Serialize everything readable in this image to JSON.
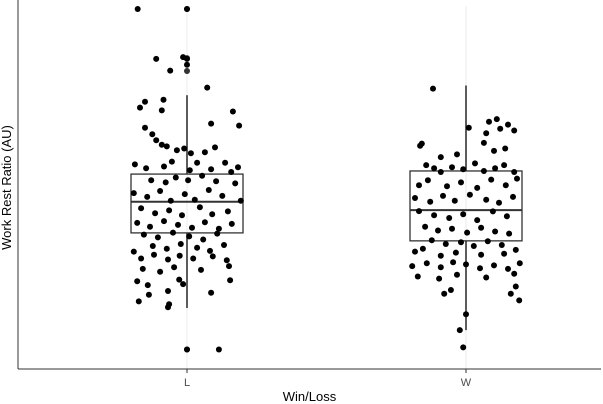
{
  "chart_data": {
    "type": "boxplot",
    "title": "",
    "xlabel": "Win/Loss",
    "ylabel": "Work Rest Ratio (AU)",
    "categories": [
      "L",
      "W"
    ],
    "y_tick_labels": [],
    "ylim": [
      0,
      100
    ],
    "grid": {
      "vertical_major": true,
      "horizontal": false
    },
    "boxes": [
      {
        "category": "L",
        "whisker_low": 13.3,
        "q1": 35.0,
        "median": 44.0,
        "q3": 52.0,
        "whisker_high": 74.8,
        "outliers": [
          1.3,
          81.8,
          85.5,
          99.7
        ]
      },
      {
        "category": "W",
        "whisker_low": 6.9,
        "q1": 32.7,
        "median": 41.6,
        "q3": 52.9,
        "whisker_high": 77.6,
        "outliers": []
      }
    ],
    "points": [
      {
        "category": "L",
        "jitter": -0.88,
        "y": 99.7
      },
      {
        "category": "L",
        "jitter": 0.0,
        "y": 99.7
      },
      {
        "category": "L",
        "jitter": -0.55,
        "y": 85.3
      },
      {
        "category": "L",
        "jitter": -0.07,
        "y": 85.8
      },
      {
        "category": "L",
        "jitter": 0.0,
        "y": 85.3
      },
      {
        "category": "L",
        "jitter": 0.0,
        "y": 83.6
      },
      {
        "category": "L",
        "jitter": -0.3,
        "y": 81.9
      },
      {
        "category": "L",
        "jitter": 0.36,
        "y": 77.0
      },
      {
        "category": "L",
        "jitter": -0.75,
        "y": 72.9
      },
      {
        "category": "L",
        "jitter": -0.42,
        "y": 73.5
      },
      {
        "category": "L",
        "jitter": -0.45,
        "y": 70.4
      },
      {
        "category": "L",
        "jitter": -0.84,
        "y": 71.2
      },
      {
        "category": "L",
        "jitter": 0.82,
        "y": 70.1
      },
      {
        "category": "L",
        "jitter": -0.75,
        "y": 65.4
      },
      {
        "category": "L",
        "jitter": -0.62,
        "y": 63.5
      },
      {
        "category": "L",
        "jitter": 0.43,
        "y": 66.6
      },
      {
        "category": "L",
        "jitter": 0.93,
        "y": 66.0
      },
      {
        "category": "L",
        "jitter": -0.55,
        "y": 61.8
      },
      {
        "category": "L",
        "jitter": -0.45,
        "y": 60.5
      },
      {
        "category": "L",
        "jitter": -0.36,
        "y": 60.0
      },
      {
        "category": "L",
        "jitter": -0.18,
        "y": 58.9
      },
      {
        "category": "L",
        "jitter": -0.05,
        "y": 59.4
      },
      {
        "category": "L",
        "jitter": 0.07,
        "y": 58.0
      },
      {
        "category": "L",
        "jitter": 0.32,
        "y": 58.3
      },
      {
        "category": "L",
        "jitter": 0.5,
        "y": 59.7
      },
      {
        "category": "L",
        "jitter": -0.93,
        "y": 54.8
      },
      {
        "category": "L",
        "jitter": -0.73,
        "y": 53.7
      },
      {
        "category": "L",
        "jitter": -0.41,
        "y": 54.2
      },
      {
        "category": "L",
        "jitter": -0.27,
        "y": 55.6
      },
      {
        "category": "L",
        "jitter": 0.05,
        "y": 53.1
      },
      {
        "category": "L",
        "jitter": 0.18,
        "y": 55.3
      },
      {
        "category": "L",
        "jitter": 0.43,
        "y": 53.4
      },
      {
        "category": "L",
        "jitter": 0.68,
        "y": 55.3
      },
      {
        "category": "L",
        "jitter": 0.79,
        "y": 52.6
      },
      {
        "category": "L",
        "jitter": 0.91,
        "y": 54.0
      },
      {
        "category": "L",
        "jitter": -0.64,
        "y": 50.2
      },
      {
        "category": "L",
        "jitter": -0.38,
        "y": 49.6
      },
      {
        "category": "L",
        "jitter": -0.2,
        "y": 51.0
      },
      {
        "category": "L",
        "jitter": 0.02,
        "y": 50.2
      },
      {
        "category": "L",
        "jitter": 0.27,
        "y": 51.5
      },
      {
        "category": "L",
        "jitter": 0.52,
        "y": 49.9
      },
      {
        "category": "L",
        "jitter": 0.86,
        "y": 49.3
      },
      {
        "category": "L",
        "jitter": -0.95,
        "y": 46.5
      },
      {
        "category": "L",
        "jitter": -0.71,
        "y": 45.4
      },
      {
        "category": "L",
        "jitter": -0.48,
        "y": 47.1
      },
      {
        "category": "L",
        "jitter": -0.29,
        "y": 44.3
      },
      {
        "category": "L",
        "jitter": -0.04,
        "y": 46.2
      },
      {
        "category": "L",
        "jitter": 0.14,
        "y": 44.6
      },
      {
        "category": "L",
        "jitter": 0.39,
        "y": 47.4
      },
      {
        "category": "L",
        "jitter": 0.63,
        "y": 45.7
      },
      {
        "category": "L",
        "jitter": 0.96,
        "y": 44.3
      },
      {
        "category": "L",
        "jitter": -0.82,
        "y": 42.1
      },
      {
        "category": "L",
        "jitter": -0.57,
        "y": 40.7
      },
      {
        "category": "L",
        "jitter": -0.32,
        "y": 41.5
      },
      {
        "category": "L",
        "jitter": -0.09,
        "y": 40.1
      },
      {
        "category": "L",
        "jitter": 0.23,
        "y": 42.4
      },
      {
        "category": "L",
        "jitter": 0.45,
        "y": 40.4
      },
      {
        "category": "L",
        "jitter": 0.73,
        "y": 41.2
      },
      {
        "category": "L",
        "jitter": -0.89,
        "y": 37.9
      },
      {
        "category": "L",
        "jitter": -0.66,
        "y": 36.8
      },
      {
        "category": "L",
        "jitter": -0.41,
        "y": 38.4
      },
      {
        "category": "L",
        "jitter": -0.16,
        "y": 37.3
      },
      {
        "category": "L",
        "jitter": 0.09,
        "y": 36.5
      },
      {
        "category": "L",
        "jitter": 0.32,
        "y": 38.1
      },
      {
        "category": "L",
        "jitter": 0.57,
        "y": 36.2
      },
      {
        "category": "L",
        "jitter": 0.8,
        "y": 37.6
      },
      {
        "category": "L",
        "jitter": -0.77,
        "y": 34.5
      },
      {
        "category": "L",
        "jitter": -0.52,
        "y": 33.7
      },
      {
        "category": "L",
        "jitter": -0.25,
        "y": 35.1
      },
      {
        "category": "L",
        "jitter": 0.04,
        "y": 34.0
      },
      {
        "category": "L",
        "jitter": 0.29,
        "y": 33.1
      },
      {
        "category": "L",
        "jitter": 0.54,
        "y": 34.8
      },
      {
        "category": "L",
        "jitter": -0.61,
        "y": 31.2
      },
      {
        "category": "L",
        "jitter": -0.36,
        "y": 30.4
      },
      {
        "category": "L",
        "jitter": -0.11,
        "y": 31.8
      },
      {
        "category": "L",
        "jitter": 0.18,
        "y": 30.7
      },
      {
        "category": "L",
        "jitter": 0.41,
        "y": 29.8
      },
      {
        "category": "L",
        "jitter": 0.66,
        "y": 31.5
      },
      {
        "category": "L",
        "jitter": -0.95,
        "y": 29.6
      },
      {
        "category": "L",
        "jitter": -0.82,
        "y": 27.6
      },
      {
        "category": "L",
        "jitter": -0.59,
        "y": 28.7
      },
      {
        "category": "L",
        "jitter": -0.34,
        "y": 27.3
      },
      {
        "category": "L",
        "jitter": -0.13,
        "y": 28.4
      },
      {
        "category": "L",
        "jitter": 0.11,
        "y": 27.6
      },
      {
        "category": "L",
        "jitter": 0.46,
        "y": 28.2
      },
      {
        "category": "L",
        "jitter": 0.71,
        "y": 27.1
      },
      {
        "category": "L",
        "jitter": -0.79,
        "y": 24.6
      },
      {
        "category": "L",
        "jitter": -0.48,
        "y": 23.8
      },
      {
        "category": "L",
        "jitter": -0.23,
        "y": 25.1
      },
      {
        "category": "L",
        "jitter": 0.25,
        "y": 24.3
      },
      {
        "category": "L",
        "jitter": 0.75,
        "y": 25.4
      },
      {
        "category": "L",
        "jitter": -0.89,
        "y": 21.0
      },
      {
        "category": "L",
        "jitter": -0.14,
        "y": 21.5
      },
      {
        "category": "L",
        "jitter": -0.7,
        "y": 19.9
      },
      {
        "category": "L",
        "jitter": -0.07,
        "y": 20.2
      },
      {
        "category": "L",
        "jitter": 0.77,
        "y": 21.3
      },
      {
        "category": "L",
        "jitter": -0.68,
        "y": 17.1
      },
      {
        "category": "L",
        "jitter": -0.34,
        "y": 18.2
      },
      {
        "category": "L",
        "jitter": 0.43,
        "y": 17.7
      },
      {
        "category": "L",
        "jitter": -0.86,
        "y": 15.2
      },
      {
        "category": "L",
        "jitter": -0.32,
        "y": 14.4
      },
      {
        "category": "L",
        "jitter": -0.34,
        "y": 13.5
      },
      {
        "category": "L",
        "jitter": 0.0,
        "y": 1.3
      },
      {
        "category": "L",
        "jitter": 0.57,
        "y": 1.3
      },
      {
        "category": "W",
        "jitter": -0.59,
        "y": 76.7
      },
      {
        "category": "W",
        "jitter": 0.41,
        "y": 67.1
      },
      {
        "category": "W",
        "jitter": 0.55,
        "y": 67.9
      },
      {
        "category": "W",
        "jitter": 0.05,
        "y": 65.4
      },
      {
        "category": "W",
        "jitter": 0.36,
        "y": 63.8
      },
      {
        "category": "W",
        "jitter": 0.61,
        "y": 65.1
      },
      {
        "category": "W",
        "jitter": 0.75,
        "y": 66.3
      },
      {
        "category": "W",
        "jitter": 0.86,
        "y": 64.6
      },
      {
        "category": "W",
        "jitter": -0.82,
        "y": 60.2
      },
      {
        "category": "W",
        "jitter": -0.79,
        "y": 60.8
      },
      {
        "category": "W",
        "jitter": 0.32,
        "y": 61.0
      },
      {
        "category": "W",
        "jitter": 0.5,
        "y": 58.7
      },
      {
        "category": "W",
        "jitter": 0.7,
        "y": 59.4
      },
      {
        "category": "W",
        "jitter": -0.45,
        "y": 56.9
      },
      {
        "category": "W",
        "jitter": -0.16,
        "y": 57.7
      },
      {
        "category": "W",
        "jitter": -0.71,
        "y": 54.6
      },
      {
        "category": "W",
        "jitter": -0.57,
        "y": 53.7
      },
      {
        "category": "W",
        "jitter": -0.45,
        "y": 52.6
      },
      {
        "category": "W",
        "jitter": -0.25,
        "y": 54.0
      },
      {
        "category": "W",
        "jitter": -0.05,
        "y": 53.4
      },
      {
        "category": "W",
        "jitter": 0.16,
        "y": 55.1
      },
      {
        "category": "W",
        "jitter": 0.32,
        "y": 52.9
      },
      {
        "category": "W",
        "jitter": 0.52,
        "y": 53.7
      },
      {
        "category": "W",
        "jitter": 0.68,
        "y": 54.6
      },
      {
        "category": "W",
        "jitter": 0.86,
        "y": 52.6
      },
      {
        "category": "W",
        "jitter": -0.84,
        "y": 48.8
      },
      {
        "category": "W",
        "jitter": -0.68,
        "y": 50.2
      },
      {
        "category": "W",
        "jitter": -0.34,
        "y": 48.5
      },
      {
        "category": "W",
        "jitter": -0.09,
        "y": 49.6
      },
      {
        "category": "W",
        "jitter": 0.2,
        "y": 48.0
      },
      {
        "category": "W",
        "jitter": 0.45,
        "y": 50.4
      },
      {
        "category": "W",
        "jitter": 0.71,
        "y": 48.8
      },
      {
        "category": "W",
        "jitter": 0.91,
        "y": 50.7
      },
      {
        "category": "W",
        "jitter": -0.91,
        "y": 45.1
      },
      {
        "category": "W",
        "jitter": -0.64,
        "y": 44.0
      },
      {
        "category": "W",
        "jitter": -0.41,
        "y": 45.7
      },
      {
        "category": "W",
        "jitter": -0.2,
        "y": 44.3
      },
      {
        "category": "W",
        "jitter": 0.07,
        "y": 46.0
      },
      {
        "category": "W",
        "jitter": 0.36,
        "y": 44.6
      },
      {
        "category": "W",
        "jitter": 0.59,
        "y": 43.7
      },
      {
        "category": "W",
        "jitter": 0.84,
        "y": 45.4
      },
      {
        "category": "W",
        "jitter": -0.84,
        "y": 41.3
      },
      {
        "category": "W",
        "jitter": -0.57,
        "y": 40.1
      },
      {
        "category": "W",
        "jitter": -0.3,
        "y": 39.3
      },
      {
        "category": "W",
        "jitter": -0.05,
        "y": 40.4
      },
      {
        "category": "W",
        "jitter": 0.2,
        "y": 38.7
      },
      {
        "category": "W",
        "jitter": 0.48,
        "y": 41.2
      },
      {
        "category": "W",
        "jitter": 0.73,
        "y": 39.8
      },
      {
        "category": "W",
        "jitter": -0.73,
        "y": 36.8
      },
      {
        "category": "W",
        "jitter": -0.5,
        "y": 35.7
      },
      {
        "category": "W",
        "jitter": -0.25,
        "y": 36.2
      },
      {
        "category": "W",
        "jitter": 0.02,
        "y": 35.1
      },
      {
        "category": "W",
        "jitter": 0.27,
        "y": 36.5
      },
      {
        "category": "W",
        "jitter": 0.52,
        "y": 35.4
      },
      {
        "category": "W",
        "jitter": 0.77,
        "y": 34.8
      },
      {
        "category": "W",
        "jitter": -0.61,
        "y": 32.9
      },
      {
        "category": "W",
        "jitter": -0.36,
        "y": 31.8
      },
      {
        "category": "W",
        "jitter": -0.09,
        "y": 32.3
      },
      {
        "category": "W",
        "jitter": 0.14,
        "y": 31.2
      },
      {
        "category": "W",
        "jitter": 0.39,
        "y": 32.6
      },
      {
        "category": "W",
        "jitter": 0.64,
        "y": 31.5
      },
      {
        "category": "W",
        "jitter": -0.91,
        "y": 29.6
      },
      {
        "category": "W",
        "jitter": -0.77,
        "y": 30.4
      },
      {
        "category": "W",
        "jitter": 0.89,
        "y": 30.1
      },
      {
        "category": "W",
        "jitter": -0.45,
        "y": 28.4
      },
      {
        "category": "W",
        "jitter": -0.18,
        "y": 29.3
      },
      {
        "category": "W",
        "jitter": 0.27,
        "y": 28.7
      },
      {
        "category": "W",
        "jitter": 0.68,
        "y": 29.0
      },
      {
        "category": "W",
        "jitter": -0.96,
        "y": 25.4
      },
      {
        "category": "W",
        "jitter": -0.7,
        "y": 26.2
      },
      {
        "category": "W",
        "jitter": -0.45,
        "y": 25.1
      },
      {
        "category": "W",
        "jitter": -0.23,
        "y": 26.5
      },
      {
        "category": "W",
        "jitter": 0.0,
        "y": 25.9
      },
      {
        "category": "W",
        "jitter": 0.25,
        "y": 24.8
      },
      {
        "category": "W",
        "jitter": 0.5,
        "y": 25.6
      },
      {
        "category": "W",
        "jitter": 0.75,
        "y": 24.6
      },
      {
        "category": "W",
        "jitter": 0.96,
        "y": 26.2
      },
      {
        "category": "W",
        "jitter": -0.86,
        "y": 22.4
      },
      {
        "category": "W",
        "jitter": -0.48,
        "y": 21.8
      },
      {
        "category": "W",
        "jitter": -0.16,
        "y": 22.9
      },
      {
        "category": "W",
        "jitter": 0.36,
        "y": 22.1
      },
      {
        "category": "W",
        "jitter": 0.86,
        "y": 23.2
      },
      {
        "category": "W",
        "jitter": 0.89,
        "y": 19.5
      },
      {
        "category": "W",
        "jitter": -0.39,
        "y": 17.4
      },
      {
        "category": "W",
        "jitter": -0.27,
        "y": 18.5
      },
      {
        "category": "W",
        "jitter": 0.8,
        "y": 17.4
      },
      {
        "category": "W",
        "jitter": 0.95,
        "y": 15.5
      },
      {
        "category": "W",
        "jitter": 0.0,
        "y": 11.5
      },
      {
        "category": "W",
        "jitter": -0.11,
        "y": 6.9
      },
      {
        "category": "W",
        "jitter": -0.05,
        "y": 1.9
      }
    ]
  }
}
